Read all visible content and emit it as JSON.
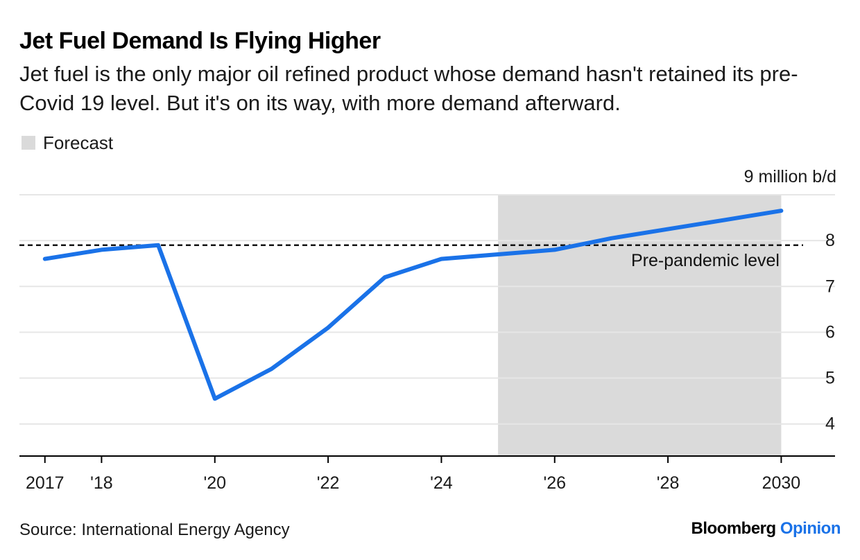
{
  "title": "Jet Fuel Demand Is Flying Higher",
  "subtitle": "Jet fuel is the only major oil refined product whose demand hasn't retained its pre-Covid 19 level. But it's on its way, with more demand afterward.",
  "legend": {
    "label": "Forecast",
    "color": "#dadada"
  },
  "source": "Source: International Energy Agency",
  "brand": {
    "name": "Bloomberg",
    "accent": "Opinion",
    "accent_color": "#1a72e8"
  },
  "chart_data": {
    "type": "line",
    "title": "Jet Fuel Demand Is Flying Higher",
    "x": [
      2017,
      2018,
      2019,
      2020,
      2021,
      2022,
      2023,
      2024,
      2025,
      2026,
      2027,
      2028,
      2029,
      2030
    ],
    "series": [
      {
        "values": [
          7.6,
          7.8,
          7.9,
          4.55,
          5.2,
          6.1,
          7.2,
          7.6,
          7.7,
          7.8,
          8.05,
          8.25,
          8.45,
          8.65
        ],
        "color": "#1a72e8"
      }
    ],
    "forecast_range": [
      2025,
      2030
    ],
    "reference_line": {
      "value": 7.9,
      "label": "Pre-pandemic level"
    },
    "ylim": [
      3.3,
      9.0
    ],
    "xlim": [
      2016.55,
      2030.95
    ],
    "y_ticks": [
      4,
      5,
      6,
      7,
      8,
      9
    ],
    "y_tick_labels": [
      "4",
      "5",
      "6",
      "7",
      "8",
      "9 million b/d"
    ],
    "x_ticks": [
      2017,
      2018,
      2020,
      2022,
      2024,
      2026,
      2028,
      2030
    ],
    "x_tick_labels": [
      "2017",
      "'18",
      "'20",
      "'22",
      "'24",
      "'26",
      "'28",
      "2030"
    ],
    "ylabel": "",
    "xlabel": "",
    "y_axis_position": "right",
    "grid": true
  }
}
